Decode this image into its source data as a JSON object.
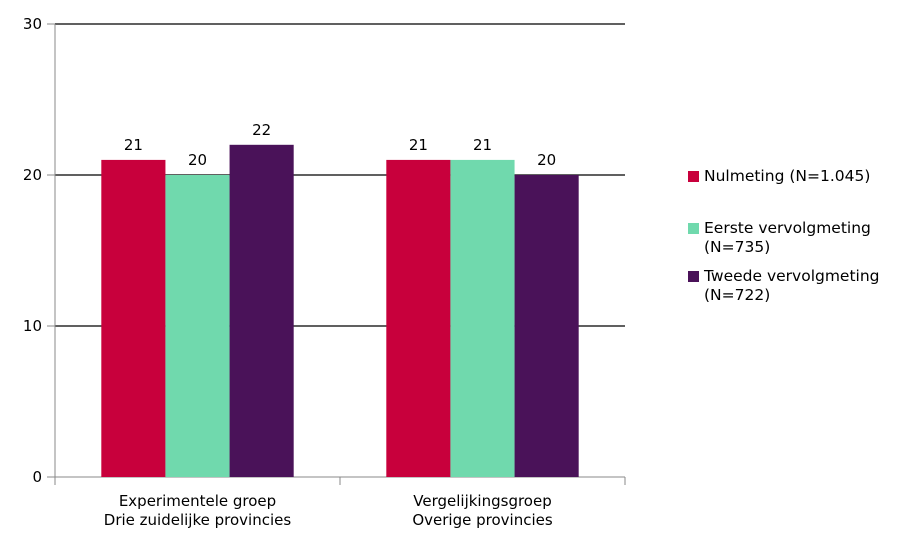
{
  "chart_data": {
    "type": "bar",
    "categories": [
      [
        "Experimentele groep",
        "Drie zuidelijke provincies"
      ],
      [
        "Vergelijkingsgroep",
        "Overige provincies"
      ]
    ],
    "series": [
      {
        "name": "Nulmeting (N=1.045)",
        "color": "#c8003c",
        "values": [
          21,
          21
        ]
      },
      {
        "name": "Eerste vervolgmeting (N=735)",
        "color": "#70d9ad",
        "values": [
          20,
          21
        ]
      },
      {
        "name": "Tweede vervolgmeting (N=722)",
        "color": "#4a1259",
        "values": [
          22,
          20
        ]
      }
    ],
    "ylim": [
      0,
      30
    ],
    "yticks": [
      0,
      10,
      20,
      30
    ],
    "grid": true,
    "legend": "right"
  }
}
